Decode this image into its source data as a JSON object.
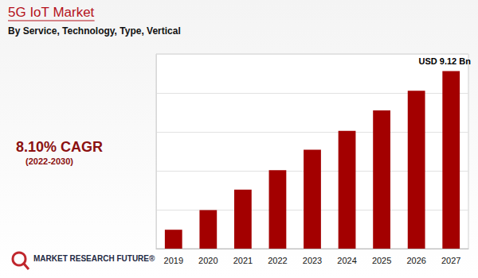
{
  "chart_data": {
    "type": "bar",
    "title": "5G IoT Market",
    "subtitle": "By Service, Technology, Type, Vertical",
    "categories": [
      "2019",
      "2020",
      "2021",
      "2022",
      "2023",
      "2024",
      "2025",
      "2026",
      "2027"
    ],
    "values": [
      0.97,
      1.98,
      3.03,
      4.03,
      5.08,
      6.05,
      7.1,
      8.11,
      9.12
    ],
    "value_labels": [
      null,
      null,
      null,
      null,
      null,
      null,
      null,
      null,
      "USD 9.12 Bn"
    ],
    "data_labels": true,
    "color": "#a30000",
    "ylim": [
      0,
      10
    ],
    "yticks": [
      0,
      2,
      4,
      6,
      8,
      10
    ],
    "grid": true,
    "tick_labels": "x",
    "annotations": [
      "8.10% CAGR",
      "(2022-2030)",
      "MARKET RESEARCH FUTURE®"
    ]
  }
}
